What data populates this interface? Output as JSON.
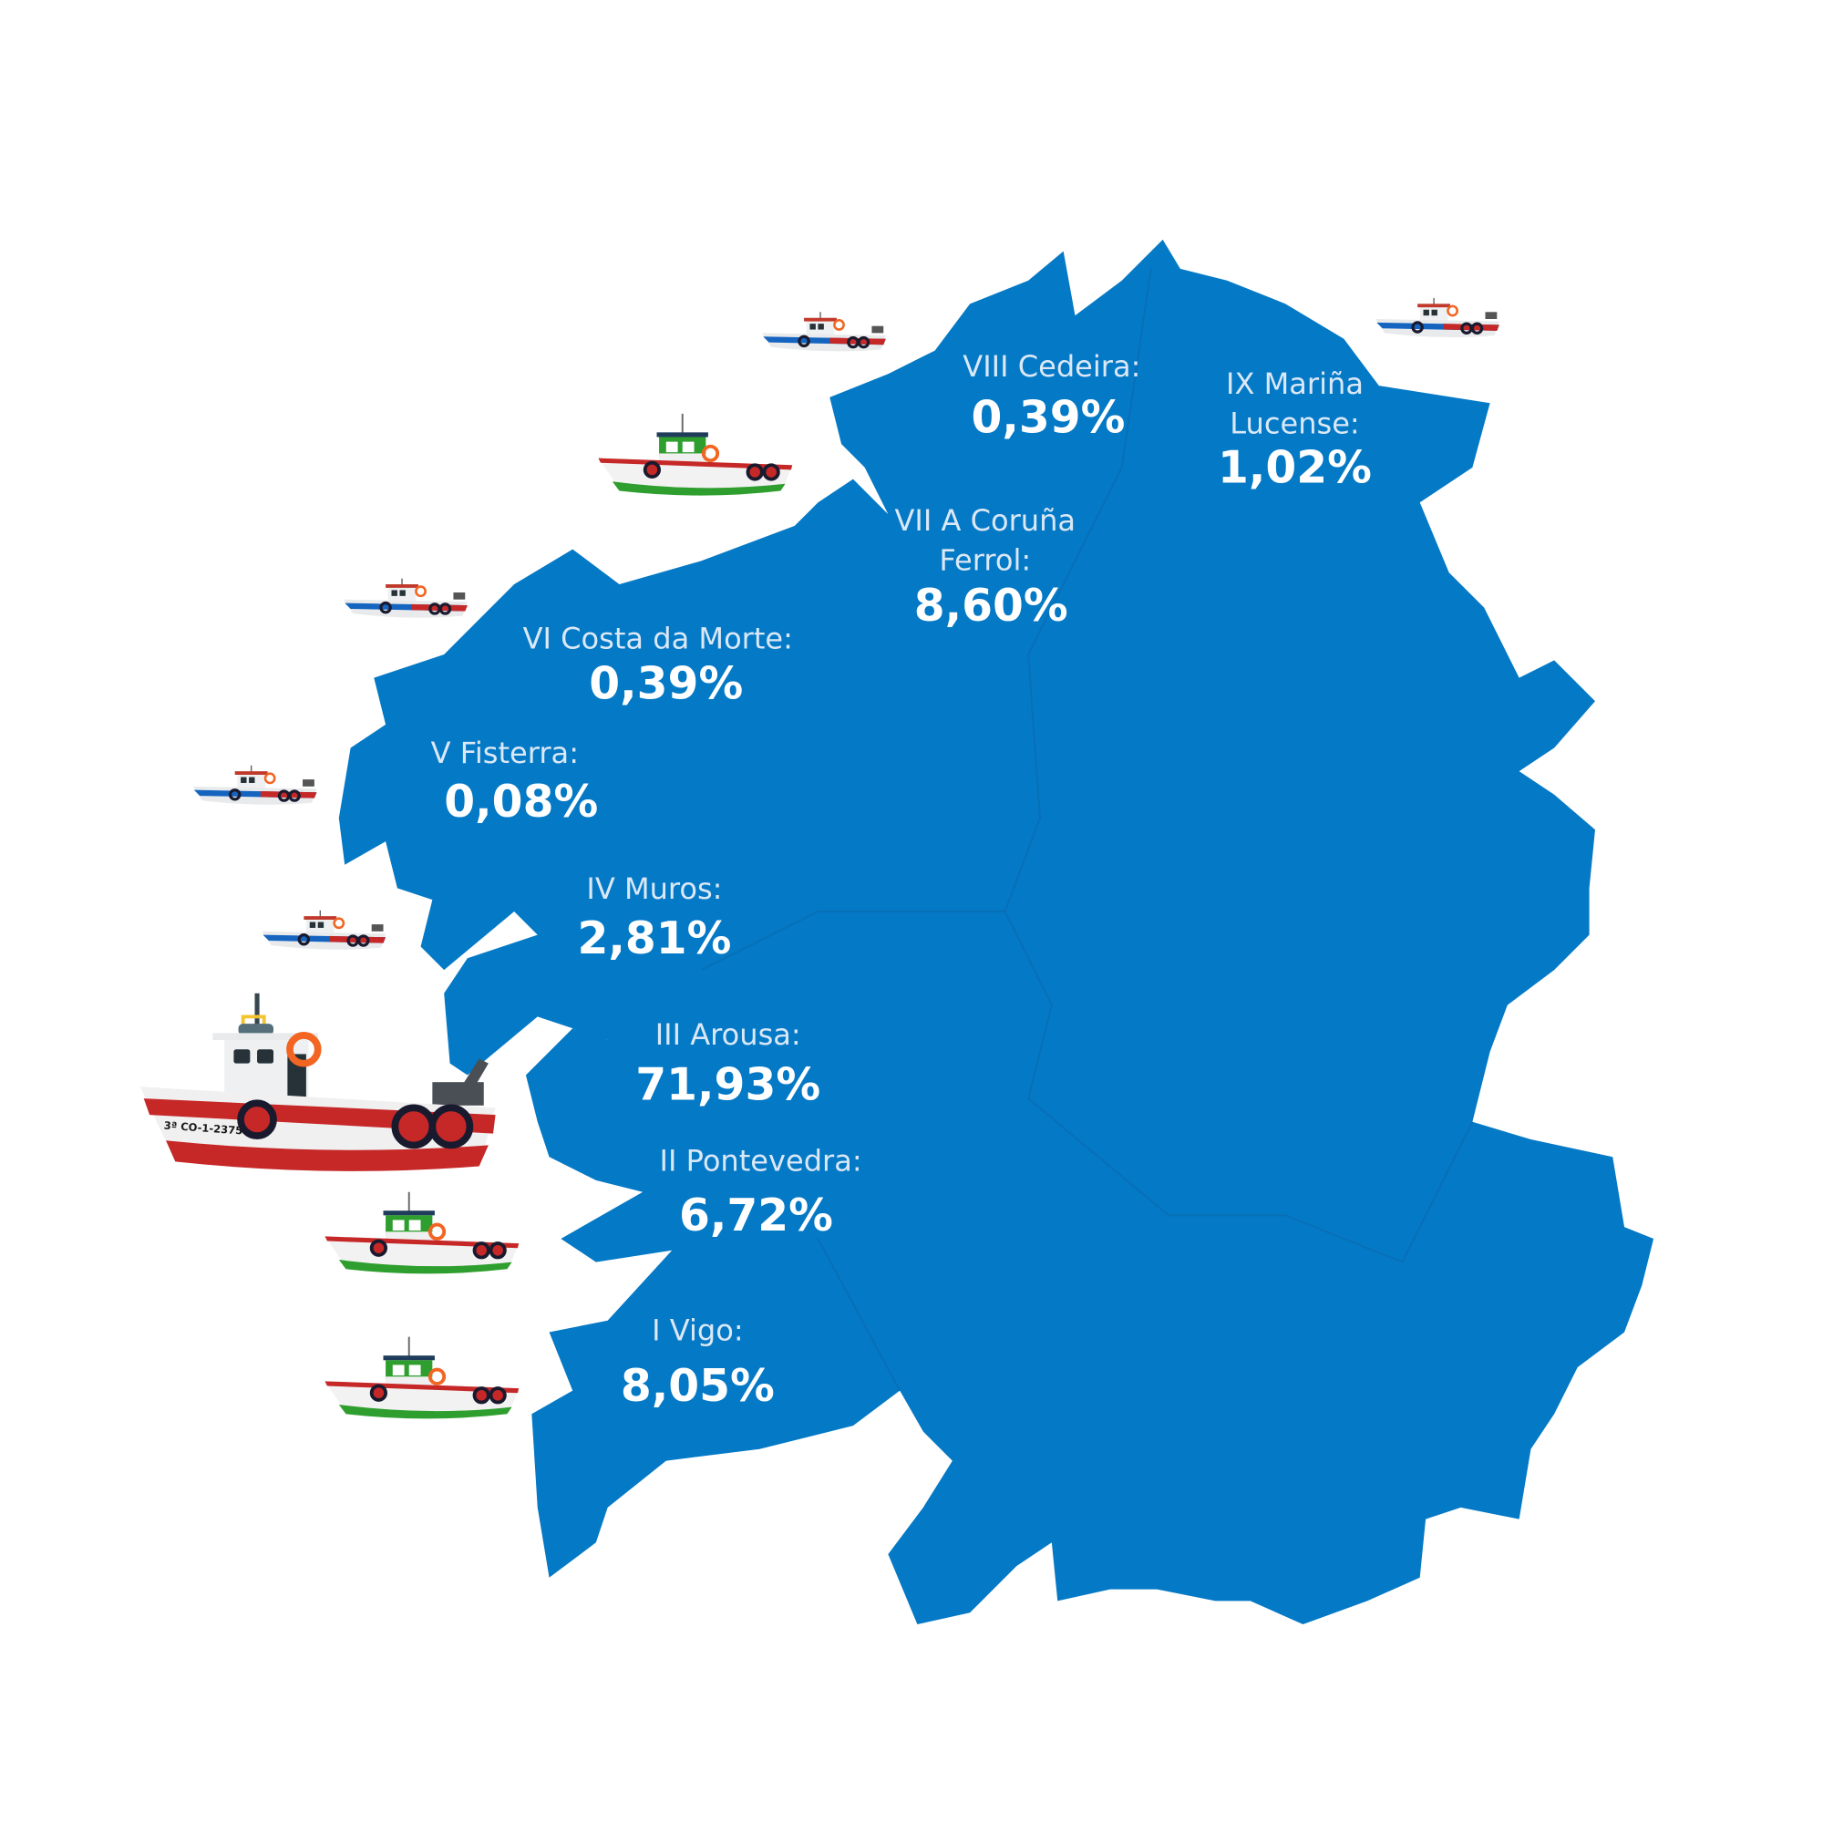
{
  "map": {
    "region_color": "#0479c6",
    "background": "#ffffff",
    "zones": [
      {
        "name_lines": [
          "VIII Cedeira:"
        ],
        "value": "0,39%"
      },
      {
        "name_lines": [
          "IX Mariña",
          "Lucense:"
        ],
        "value": "1,02%"
      },
      {
        "name_lines": [
          "VII A Coruña",
          "Ferrol:"
        ],
        "value": "8,60%"
      },
      {
        "name_lines": [
          "VI Costa da Morte:"
        ],
        "value": "0,39%"
      },
      {
        "name_lines": [
          "V Fisterra:"
        ],
        "value": "0,08%"
      },
      {
        "name_lines": [
          "IV Muros:"
        ],
        "value": "2,81%"
      },
      {
        "name_lines": [
          "III Arousa:"
        ],
        "value": "71,93%"
      },
      {
        "name_lines": [
          "II Pontevedra:"
        ],
        "value": "6,72%"
      },
      {
        "name_lines": [
          "I Vigo:"
        ],
        "value": "8,05%"
      }
    ]
  },
  "boats": {
    "big_boat_registration": "3ª CO-1-2375",
    "icons": [
      "small-blue-boat-icon",
      "green-boat-icon",
      "red-fishing-boat-icon"
    ]
  }
}
